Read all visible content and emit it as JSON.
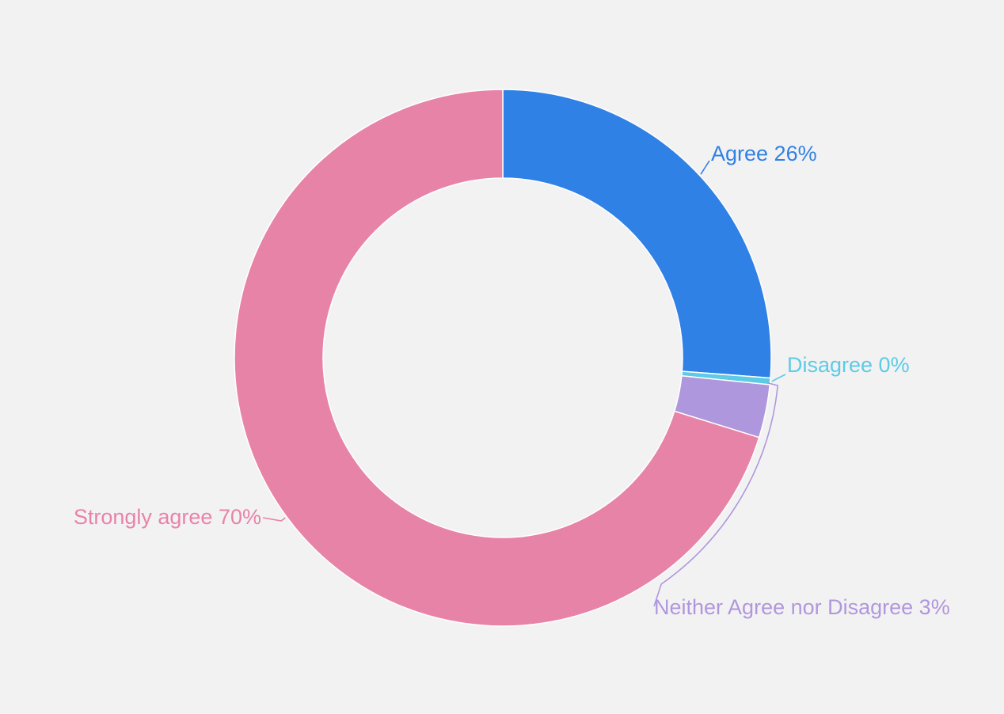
{
  "chart_data": {
    "type": "pie",
    "variant": "donut",
    "title": "",
    "start_angle_deg": 0,
    "direction": "clockwise",
    "slices": [
      {
        "name": "Agree",
        "label": "Agree 26%",
        "value": 26.2,
        "color": "#3081e5",
        "label_side": "right"
      },
      {
        "name": "Disagree",
        "label": "Disagree 0%",
        "value": 0.4,
        "color": "#5ccbe6",
        "label_side": "right"
      },
      {
        "name": "Neither Agree nor Disagree",
        "label": "Neither Agree nor Disagree 3%",
        "value": 3.2,
        "color": "#af97dd",
        "label_side": "right"
      },
      {
        "name": "Strongly agree",
        "label": "Strongly agree 70%",
        "value": 70.2,
        "color": "#e883a8",
        "label_side": "left"
      }
    ]
  }
}
